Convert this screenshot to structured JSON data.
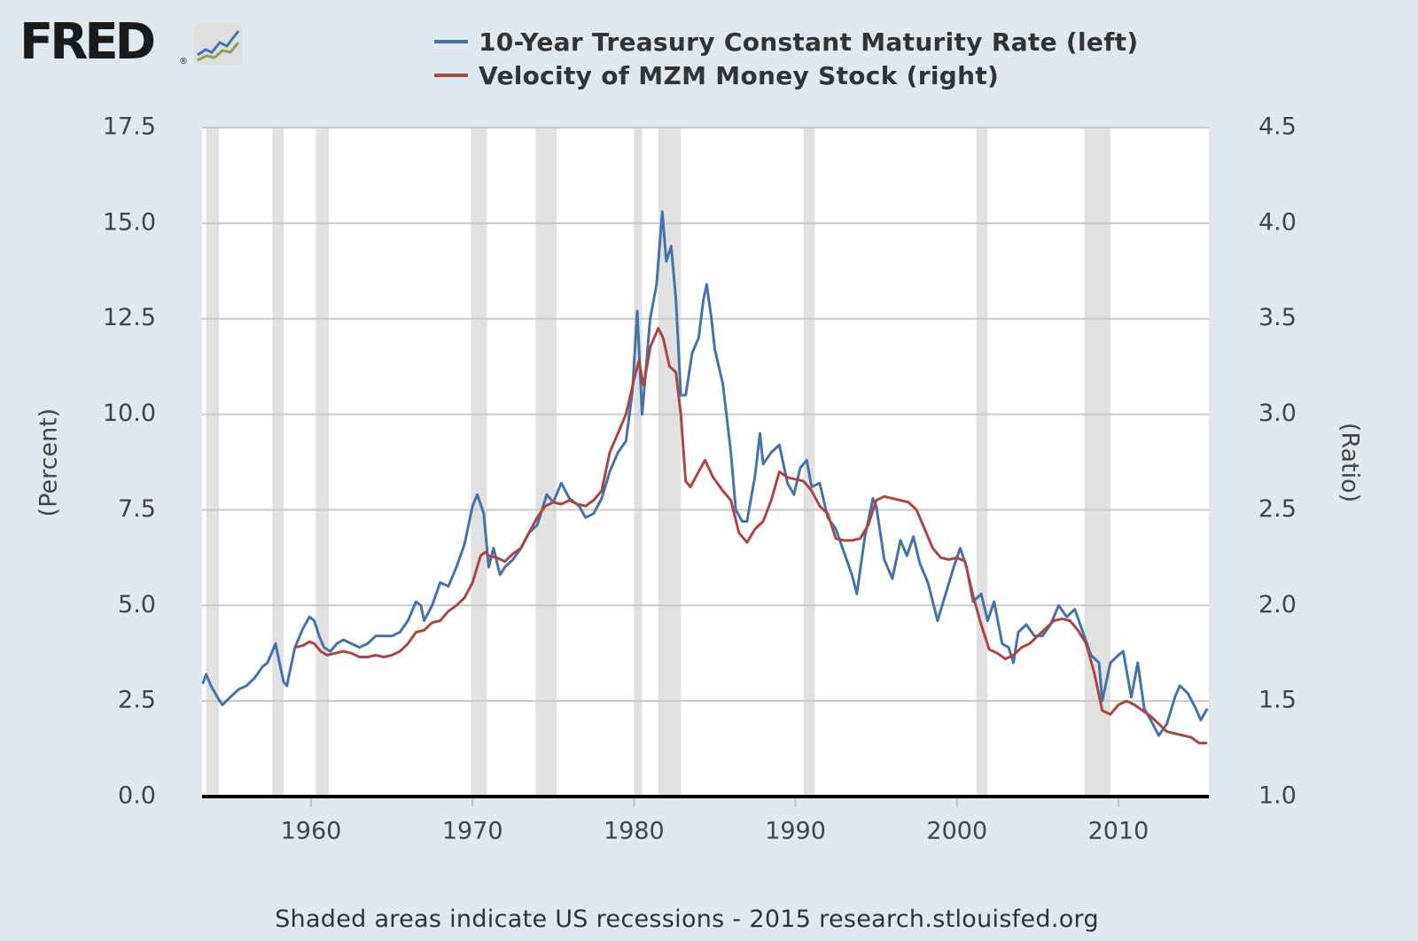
{
  "logo": {
    "text": "FRED",
    "registered": "®"
  },
  "footer": {
    "note": "Shaded areas indicate US recessions - 2015 research.stlouisfed.org"
  },
  "colors": {
    "background": "#e1e9f0",
    "plot_bg": "#ffffff",
    "grid": "#c9c9c9",
    "recession": "#e1e1e1",
    "treasury": "#4572a7",
    "velocity": "#aa4643"
  },
  "chart_data": {
    "type": "line",
    "legend_position": "top",
    "left_axis": {
      "label": "(Percent)",
      "ylim": [
        0,
        17.5
      ],
      "ticks": [
        "0.0",
        "2.5",
        "5.0",
        "7.5",
        "10.0",
        "12.5",
        "15.0",
        "17.5"
      ]
    },
    "right_axis": {
      "label": "(Ratio)",
      "ylim": [
        1.0,
        4.5
      ],
      "ticks": [
        "1.0",
        "1.5",
        "2.0",
        "2.5",
        "3.0",
        "3.5",
        "4.0",
        "4.5"
      ]
    },
    "x_axis": {
      "xlim": [
        1953.25,
        2015.6
      ],
      "ticks": [
        "1960",
        "1970",
        "1980",
        "1990",
        "2000",
        "2010"
      ]
    },
    "grid": true,
    "recessions": [
      [
        1953.5,
        1954.3
      ],
      [
        1957.6,
        1958.3
      ],
      [
        1960.3,
        1961.1
      ],
      [
        1969.9,
        1970.9
      ],
      [
        1973.9,
        1975.2
      ],
      [
        1980.0,
        1980.5
      ],
      [
        1981.5,
        1982.9
      ],
      [
        1990.5,
        1991.2
      ],
      [
        2001.2,
        2001.9
      ],
      [
        2007.9,
        2009.5
      ]
    ],
    "series": [
      {
        "name": "10-Year Treasury Constant Maturity Rate (left)",
        "axis": "left",
        "color": "#4572a7",
        "points": [
          [
            1953.3,
            2.95
          ],
          [
            1953.5,
            3.2
          ],
          [
            1953.8,
            2.9
          ],
          [
            1954.2,
            2.6
          ],
          [
            1954.5,
            2.4
          ],
          [
            1955.0,
            2.6
          ],
          [
            1955.5,
            2.8
          ],
          [
            1956.0,
            2.9
          ],
          [
            1956.5,
            3.1
          ],
          [
            1957.0,
            3.4
          ],
          [
            1957.3,
            3.5
          ],
          [
            1957.8,
            4.0
          ],
          [
            1958.0,
            3.6
          ],
          [
            1958.3,
            3.0
          ],
          [
            1958.5,
            2.9
          ],
          [
            1958.8,
            3.5
          ],
          [
            1959.0,
            3.9
          ],
          [
            1959.5,
            4.4
          ],
          [
            1959.9,
            4.7
          ],
          [
            1960.2,
            4.6
          ],
          [
            1960.5,
            4.2
          ],
          [
            1960.8,
            3.9
          ],
          [
            1961.2,
            3.8
          ],
          [
            1961.6,
            4.0
          ],
          [
            1962.0,
            4.1
          ],
          [
            1962.5,
            4.0
          ],
          [
            1963.0,
            3.9
          ],
          [
            1963.5,
            4.0
          ],
          [
            1964.0,
            4.2
          ],
          [
            1964.5,
            4.2
          ],
          [
            1965.0,
            4.2
          ],
          [
            1965.5,
            4.3
          ],
          [
            1966.0,
            4.6
          ],
          [
            1966.5,
            5.1
          ],
          [
            1966.8,
            5.0
          ],
          [
            1967.0,
            4.6
          ],
          [
            1967.5,
            5.0
          ],
          [
            1968.0,
            5.6
          ],
          [
            1968.5,
            5.5
          ],
          [
            1969.0,
            6.0
          ],
          [
            1969.5,
            6.6
          ],
          [
            1970.0,
            7.6
          ],
          [
            1970.3,
            7.9
          ],
          [
            1970.7,
            7.4
          ],
          [
            1971.0,
            6.0
          ],
          [
            1971.3,
            6.5
          ],
          [
            1971.7,
            5.8
          ],
          [
            1972.0,
            6.0
          ],
          [
            1972.5,
            6.2
          ],
          [
            1973.0,
            6.5
          ],
          [
            1973.5,
            6.9
          ],
          [
            1974.0,
            7.1
          ],
          [
            1974.6,
            7.9
          ],
          [
            1975.0,
            7.7
          ],
          [
            1975.5,
            8.2
          ],
          [
            1976.0,
            7.8
          ],
          [
            1976.6,
            7.6
          ],
          [
            1977.0,
            7.3
          ],
          [
            1977.5,
            7.4
          ],
          [
            1978.0,
            7.8
          ],
          [
            1978.5,
            8.5
          ],
          [
            1979.0,
            9.0
          ],
          [
            1979.5,
            9.3
          ],
          [
            1979.9,
            10.6
          ],
          [
            1980.2,
            12.7
          ],
          [
            1980.5,
            10.0
          ],
          [
            1980.8,
            11.5
          ],
          [
            1981.0,
            12.5
          ],
          [
            1981.4,
            13.4
          ],
          [
            1981.75,
            15.3
          ],
          [
            1982.0,
            14.0
          ],
          [
            1982.3,
            14.4
          ],
          [
            1982.6,
            13.0
          ],
          [
            1982.9,
            10.5
          ],
          [
            1983.2,
            10.5
          ],
          [
            1983.6,
            11.6
          ],
          [
            1984.0,
            12.0
          ],
          [
            1984.3,
            13.0
          ],
          [
            1984.5,
            13.4
          ],
          [
            1984.8,
            12.5
          ],
          [
            1985.0,
            11.7
          ],
          [
            1985.5,
            10.8
          ],
          [
            1986.0,
            9.0
          ],
          [
            1986.3,
            7.5
          ],
          [
            1986.7,
            7.2
          ],
          [
            1987.0,
            7.2
          ],
          [
            1987.5,
            8.4
          ],
          [
            1987.8,
            9.5
          ],
          [
            1988.0,
            8.7
          ],
          [
            1988.5,
            9.0
          ],
          [
            1989.0,
            9.2
          ],
          [
            1989.5,
            8.2
          ],
          [
            1989.9,
            7.9
          ],
          [
            1990.3,
            8.6
          ],
          [
            1990.7,
            8.8
          ],
          [
            1991.0,
            8.1
          ],
          [
            1991.5,
            8.2
          ],
          [
            1992.0,
            7.3
          ],
          [
            1992.5,
            7.0
          ],
          [
            1993.0,
            6.4
          ],
          [
            1993.5,
            5.8
          ],
          [
            1993.8,
            5.3
          ],
          [
            1994.3,
            6.8
          ],
          [
            1994.8,
            7.8
          ],
          [
            1995.0,
            7.6
          ],
          [
            1995.5,
            6.2
          ],
          [
            1996.0,
            5.7
          ],
          [
            1996.5,
            6.7
          ],
          [
            1996.9,
            6.3
          ],
          [
            1997.3,
            6.8
          ],
          [
            1997.7,
            6.1
          ],
          [
            1998.2,
            5.6
          ],
          [
            1998.8,
            4.6
          ],
          [
            1999.3,
            5.3
          ],
          [
            1999.8,
            6.0
          ],
          [
            2000.2,
            6.5
          ],
          [
            2000.6,
            6.0
          ],
          [
            2001.0,
            5.1
          ],
          [
            2001.5,
            5.3
          ],
          [
            2001.9,
            4.6
          ],
          [
            2002.3,
            5.1
          ],
          [
            2002.8,
            4.0
          ],
          [
            2003.2,
            3.9
          ],
          [
            2003.5,
            3.5
          ],
          [
            2003.8,
            4.3
          ],
          [
            2004.3,
            4.5
          ],
          [
            2004.8,
            4.2
          ],
          [
            2005.3,
            4.2
          ],
          [
            2005.8,
            4.5
          ],
          [
            2006.3,
            5.0
          ],
          [
            2006.8,
            4.7
          ],
          [
            2007.3,
            4.9
          ],
          [
            2007.8,
            4.3
          ],
          [
            2008.3,
            3.7
          ],
          [
            2008.8,
            3.5
          ],
          [
            2009.0,
            2.5
          ],
          [
            2009.5,
            3.5
          ],
          [
            2010.0,
            3.7
          ],
          [
            2010.3,
            3.8
          ],
          [
            2010.8,
            2.6
          ],
          [
            2011.2,
            3.5
          ],
          [
            2011.6,
            2.3
          ],
          [
            2012.0,
            2.0
          ],
          [
            2012.5,
            1.6
          ],
          [
            2013.0,
            1.9
          ],
          [
            2013.5,
            2.6
          ],
          [
            2013.8,
            2.9
          ],
          [
            2014.3,
            2.7
          ],
          [
            2014.8,
            2.3
          ],
          [
            2015.1,
            2.0
          ],
          [
            2015.5,
            2.3
          ]
        ]
      },
      {
        "name": "Velocity of MZM Money Stock (right)",
        "axis": "right",
        "color": "#aa4643",
        "points": [
          [
            1959.0,
            1.78
          ],
          [
            1959.5,
            1.79
          ],
          [
            1959.9,
            1.81
          ],
          [
            1960.2,
            1.8
          ],
          [
            1960.6,
            1.76
          ],
          [
            1961.0,
            1.74
          ],
          [
            1961.5,
            1.75
          ],
          [
            1962.0,
            1.76
          ],
          [
            1962.5,
            1.75
          ],
          [
            1963.0,
            1.73
          ],
          [
            1963.5,
            1.73
          ],
          [
            1964.0,
            1.74
          ],
          [
            1964.5,
            1.73
          ],
          [
            1965.0,
            1.74
          ],
          [
            1965.5,
            1.76
          ],
          [
            1966.0,
            1.8
          ],
          [
            1966.5,
            1.86
          ],
          [
            1967.0,
            1.87
          ],
          [
            1967.5,
            1.91
          ],
          [
            1968.0,
            1.92
          ],
          [
            1968.5,
            1.97
          ],
          [
            1969.0,
            2.0
          ],
          [
            1969.5,
            2.04
          ],
          [
            1970.0,
            2.12
          ],
          [
            1970.5,
            2.26
          ],
          [
            1970.8,
            2.28
          ],
          [
            1971.0,
            2.26
          ],
          [
            1971.5,
            2.25
          ],
          [
            1972.0,
            2.23
          ],
          [
            1972.5,
            2.27
          ],
          [
            1973.0,
            2.3
          ],
          [
            1973.5,
            2.38
          ],
          [
            1974.0,
            2.46
          ],
          [
            1974.5,
            2.52
          ],
          [
            1975.0,
            2.54
          ],
          [
            1975.5,
            2.53
          ],
          [
            1976.0,
            2.55
          ],
          [
            1976.5,
            2.53
          ],
          [
            1977.0,
            2.52
          ],
          [
            1977.5,
            2.55
          ],
          [
            1978.0,
            2.6
          ],
          [
            1978.5,
            2.8
          ],
          [
            1979.0,
            2.9
          ],
          [
            1979.5,
            3.0
          ],
          [
            1980.0,
            3.18
          ],
          [
            1980.3,
            3.28
          ],
          [
            1980.6,
            3.15
          ],
          [
            1981.0,
            3.35
          ],
          [
            1981.5,
            3.45
          ],
          [
            1981.8,
            3.4
          ],
          [
            1982.2,
            3.25
          ],
          [
            1982.6,
            3.22
          ],
          [
            1982.9,
            3.0
          ],
          [
            1983.2,
            2.65
          ],
          [
            1983.5,
            2.62
          ],
          [
            1984.0,
            2.7
          ],
          [
            1984.4,
            2.76
          ],
          [
            1984.9,
            2.67
          ],
          [
            1985.5,
            2.6
          ],
          [
            1986.0,
            2.55
          ],
          [
            1986.5,
            2.38
          ],
          [
            1987.0,
            2.33
          ],
          [
            1987.5,
            2.4
          ],
          [
            1988.0,
            2.44
          ],
          [
            1988.5,
            2.55
          ],
          [
            1989.0,
            2.7
          ],
          [
            1989.5,
            2.67
          ],
          [
            1990.0,
            2.66
          ],
          [
            1990.5,
            2.65
          ],
          [
            1991.0,
            2.6
          ],
          [
            1991.5,
            2.52
          ],
          [
            1992.0,
            2.48
          ],
          [
            1992.5,
            2.35
          ],
          [
            1993.0,
            2.34
          ],
          [
            1993.5,
            2.34
          ],
          [
            1994.0,
            2.35
          ],
          [
            1994.5,
            2.42
          ],
          [
            1995.0,
            2.55
          ],
          [
            1995.5,
            2.57
          ],
          [
            1996.0,
            2.56
          ],
          [
            1996.5,
            2.55
          ],
          [
            1997.0,
            2.54
          ],
          [
            1997.5,
            2.5
          ],
          [
            1998.0,
            2.4
          ],
          [
            1998.5,
            2.3
          ],
          [
            1999.0,
            2.25
          ],
          [
            1999.5,
            2.24
          ],
          [
            2000.0,
            2.25
          ],
          [
            2000.5,
            2.23
          ],
          [
            2001.0,
            2.05
          ],
          [
            2001.5,
            1.9
          ],
          [
            2002.0,
            1.77
          ],
          [
            2002.5,
            1.75
          ],
          [
            2003.0,
            1.72
          ],
          [
            2003.5,
            1.74
          ],
          [
            2004.0,
            1.78
          ],
          [
            2004.5,
            1.8
          ],
          [
            2005.0,
            1.84
          ],
          [
            2005.5,
            1.88
          ],
          [
            2006.0,
            1.92
          ],
          [
            2006.5,
            1.93
          ],
          [
            2007.0,
            1.92
          ],
          [
            2007.5,
            1.87
          ],
          [
            2008.0,
            1.8
          ],
          [
            2008.5,
            1.65
          ],
          [
            2009.0,
            1.45
          ],
          [
            2009.5,
            1.43
          ],
          [
            2010.0,
            1.48
          ],
          [
            2010.5,
            1.5
          ],
          [
            2011.0,
            1.48
          ],
          [
            2011.5,
            1.45
          ],
          [
            2012.0,
            1.42
          ],
          [
            2012.5,
            1.38
          ],
          [
            2013.0,
            1.34
          ],
          [
            2013.5,
            1.33
          ],
          [
            2014.0,
            1.32
          ],
          [
            2014.5,
            1.31
          ],
          [
            2015.0,
            1.28
          ],
          [
            2015.5,
            1.28
          ]
        ]
      }
    ]
  }
}
